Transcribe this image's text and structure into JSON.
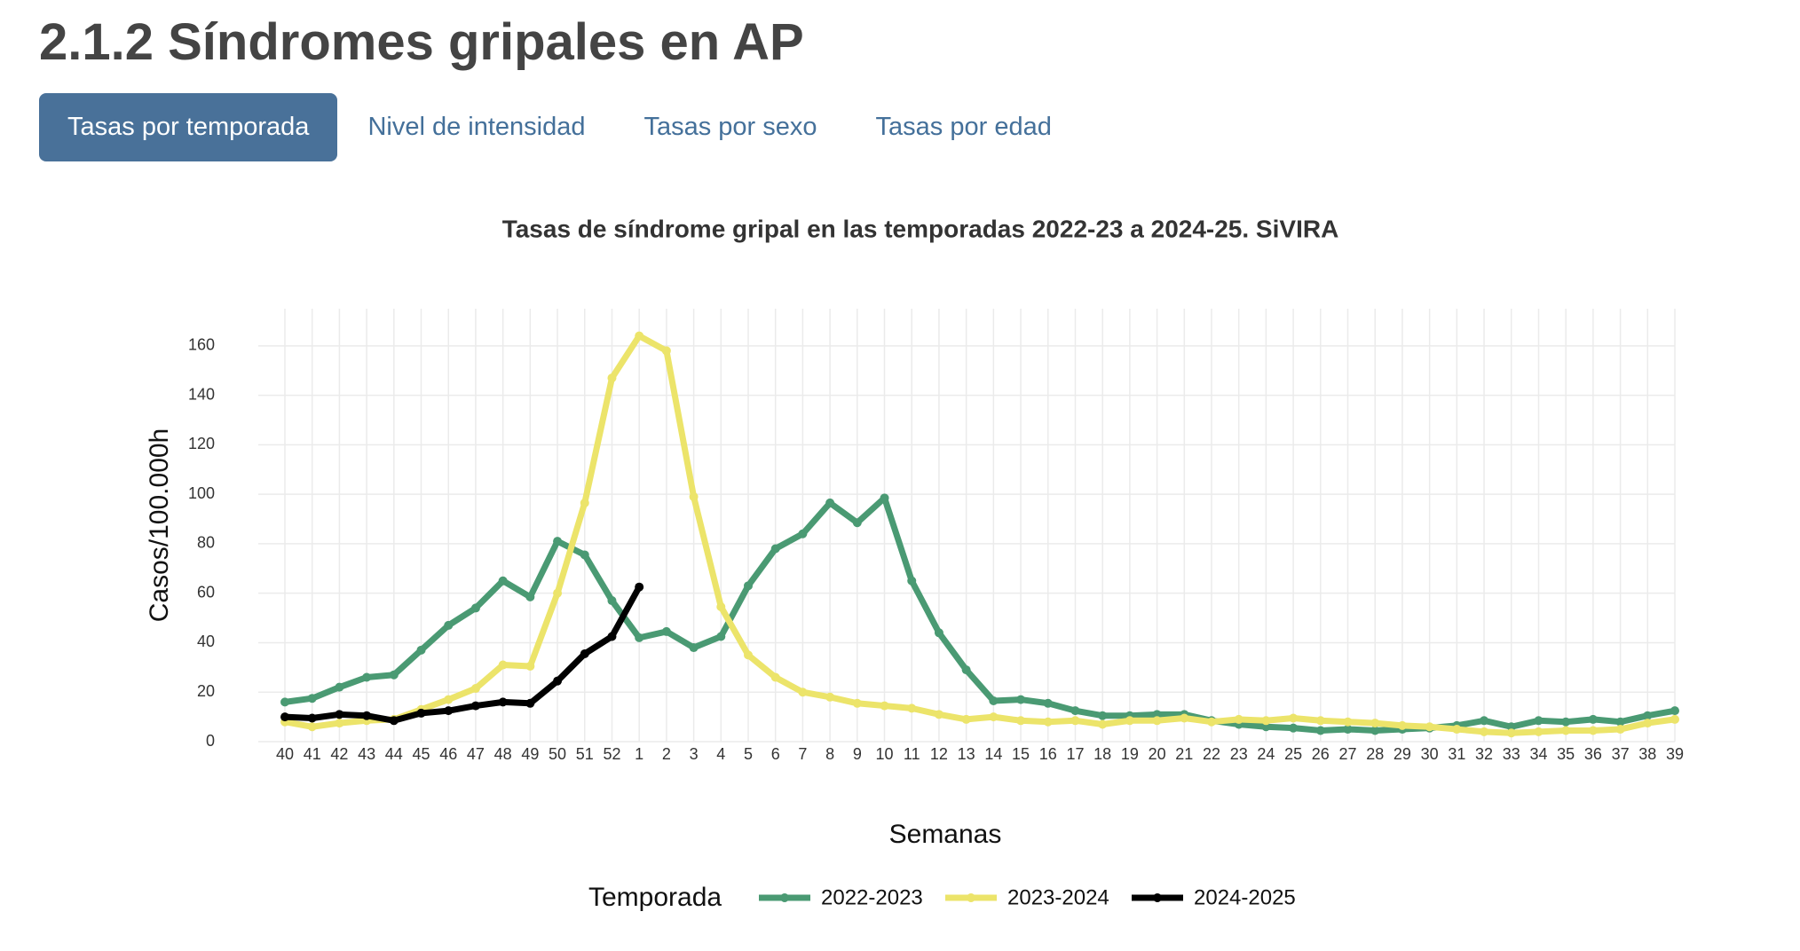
{
  "header": {
    "title": "2.1.2 Síndromes gripales en AP"
  },
  "tabs": {
    "items": [
      "Tasas por temporada",
      "Nivel de intensidad",
      "Tasas por sexo",
      "Tasas por edad"
    ],
    "active": 0
  },
  "chart_data": {
    "type": "line",
    "title": "Tasas de síndrome gripal en las temporadas 2022-23 a 2024-25. SiVIRA",
    "x_label": "Semanas",
    "y_label": "Casos/100.000h",
    "legend_title": "Temporada",
    "categories": [
      "40",
      "41",
      "42",
      "43",
      "44",
      "45",
      "46",
      "47",
      "48",
      "49",
      "50",
      "51",
      "52",
      "1",
      "2",
      "3",
      "4",
      "5",
      "6",
      "7",
      "8",
      "9",
      "10",
      "11",
      "12",
      "13",
      "14",
      "15",
      "16",
      "17",
      "18",
      "19",
      "20",
      "21",
      "22",
      "23",
      "24",
      "25",
      "26",
      "27",
      "28",
      "29",
      "30",
      "31",
      "32",
      "33",
      "34",
      "35",
      "36",
      "37",
      "38",
      "39"
    ],
    "series": [
      {
        "name": "2022-2023",
        "color": "#4a9a73",
        "values": [
          16,
          17.5,
          22,
          26,
          27,
          37,
          47,
          54,
          65,
          58.5,
          81,
          75.5,
          57,
          42,
          44.5,
          38,
          42.5,
          63,
          78,
          84,
          96.5,
          88.5,
          98.5,
          65,
          44,
          29,
          16.5,
          17,
          15.5,
          12.5,
          10.5,
          10.5,
          11,
          11,
          8.5,
          7,
          6,
          5.5,
          4.5,
          5,
          4.5,
          5,
          5.5,
          6.5,
          8.5,
          6,
          8.5,
          8,
          9,
          8,
          10.5,
          12.5
        ]
      },
      {
        "name": "2023-2024",
        "color": "#ece46a",
        "values": [
          8,
          6,
          7.5,
          8.5,
          9,
          13,
          17,
          21.5,
          31,
          30.5,
          60,
          96.5,
          147,
          164,
          158,
          99,
          54.5,
          35,
          26,
          20,
          18,
          15.5,
          14.5,
          13.5,
          11,
          9,
          10,
          8.5,
          8,
          8.5,
          7,
          8.5,
          8.5,
          9.5,
          8,
          9,
          8.5,
          9.5,
          8.5,
          8,
          7.5,
          6.5,
          6,
          5,
          4,
          3.5,
          4,
          4.5,
          4.5,
          5,
          7.5,
          9
        ]
      },
      {
        "name": "2024-2025",
        "color": "#000000",
        "values": [
          10,
          9.5,
          11,
          10.5,
          8.5,
          11.5,
          12.5,
          14.5,
          16,
          15.5,
          24.5,
          35.5,
          42.5,
          62.5,
          null,
          null,
          null,
          null,
          null,
          null,
          null,
          null,
          null,
          null,
          null,
          null,
          null,
          null,
          null,
          null,
          null,
          null,
          null,
          null,
          null,
          null,
          null,
          null,
          null,
          null,
          null,
          null,
          null,
          null,
          null,
          null,
          null,
          null,
          null,
          null,
          null,
          null
        ]
      }
    ],
    "ylim": [
      0,
      175
    ],
    "yticks": [
      0,
      20,
      40,
      60,
      80,
      100,
      120,
      140,
      160
    ],
    "grid": true,
    "legend": "bottom"
  }
}
